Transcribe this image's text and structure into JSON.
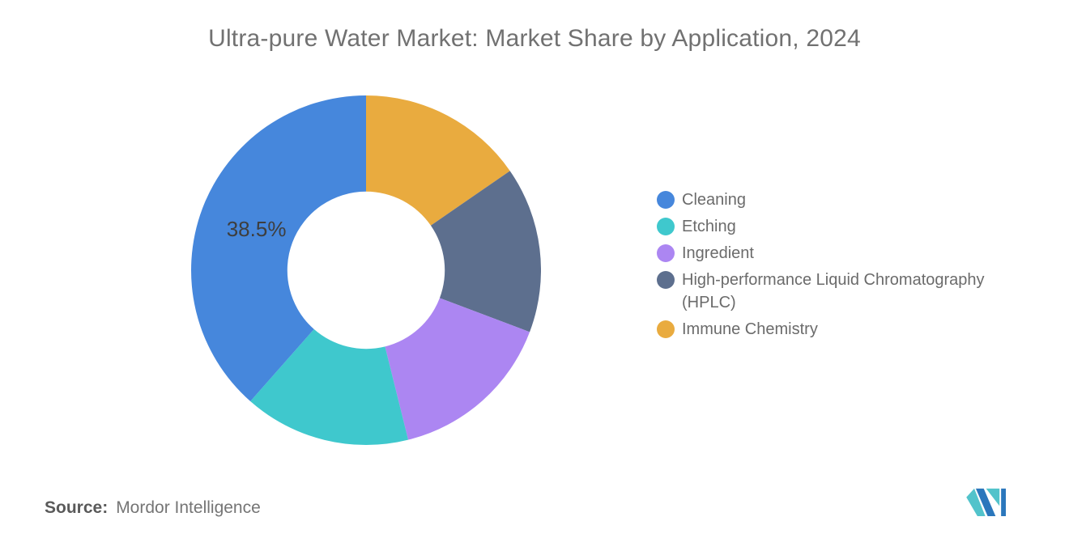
{
  "page": {
    "source_label": "Source:",
    "source_value": "Mordor Intelligence"
  },
  "logo": {
    "teal": "#52C3CB",
    "blue": "#2B77BC"
  },
  "text_colors": {
    "title": "#717171",
    "legend": "#6b6b6b",
    "slice_label": "#3e3e3e"
  },
  "chart_data": {
    "type": "pie",
    "variant": "donut",
    "title": "Ultra-pure Water Market: Market Share by Application, 2024",
    "unit": "%",
    "series": [
      {
        "name": "Cleaning",
        "value": 38.5,
        "color": "#4687DC",
        "data_label": "38.5%"
      },
      {
        "name": "Etching",
        "value": 15.375,
        "color": "#3FC8CD",
        "data_label": ""
      },
      {
        "name": "Ingredient",
        "value": 15.375,
        "color": "#AC86F2",
        "data_label": ""
      },
      {
        "name": "High-performance Liquid Chromatography (HPLC)",
        "value": 15.375,
        "color": "#5D6F8E",
        "data_label": ""
      },
      {
        "name": "Immune Chemistry",
        "value": 15.375,
        "color": "#E9AB3F",
        "data_label": ""
      }
    ],
    "start_angle_deg": 0,
    "direction": "counterclockwise",
    "inner_radius_ratio": 0.45,
    "label_radius_ratio": 0.4,
    "legend_position": "right",
    "background": "#ffffff"
  }
}
